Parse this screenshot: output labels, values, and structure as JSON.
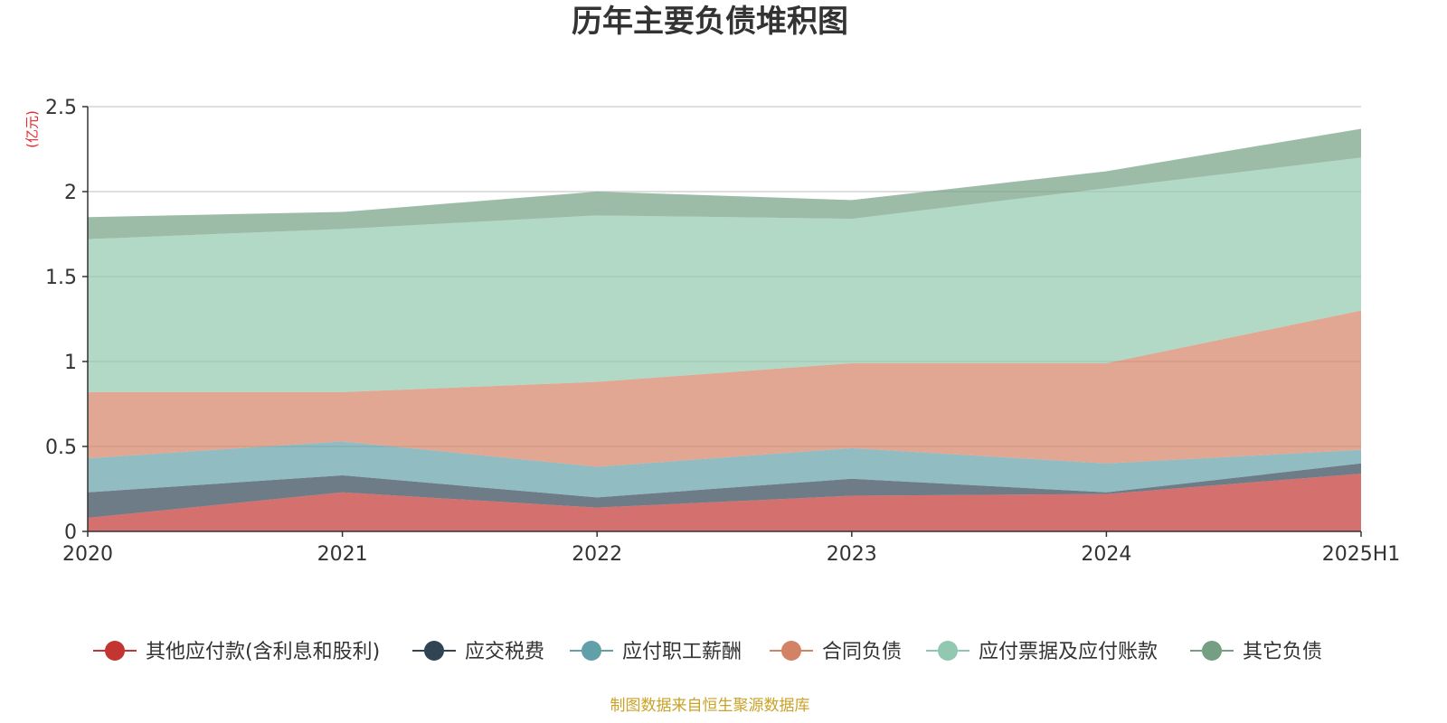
{
  "chart_data": {
    "type": "area",
    "title": "历年主要负债堆积图",
    "unit_label": "(亿元)",
    "categories": [
      "2020",
      "2021",
      "2022",
      "2023",
      "2024",
      "2025H1"
    ],
    "y_ticks": [
      "0",
      "0.5",
      "1",
      "1.5",
      "2",
      "2.5"
    ],
    "ylim": [
      0,
      2.5
    ],
    "stacked": true,
    "grid": true,
    "legend_position": "bottom",
    "series": [
      {
        "name": "其他应付款(含利息和股利)",
        "color": "#c23531",
        "values": [
          0.08,
          0.23,
          0.14,
          0.21,
          0.22,
          0.34
        ]
      },
      {
        "name": "应交税费",
        "color": "#2f4554",
        "values": [
          0.15,
          0.1,
          0.06,
          0.1,
          0.01,
          0.06
        ]
      },
      {
        "name": "应付职工薪酬",
        "color": "#61a0a8",
        "values": [
          0.2,
          0.2,
          0.18,
          0.18,
          0.17,
          0.08
        ]
      },
      {
        "name": "合同负债",
        "color": "#d48265",
        "values": [
          0.39,
          0.29,
          0.5,
          0.5,
          0.59,
          0.82
        ]
      },
      {
        "name": "应付票据及应付账款",
        "color": "#91c7ae",
        "values": [
          0.9,
          0.96,
          0.98,
          0.85,
          1.03,
          0.9
        ]
      },
      {
        "name": "其它负债",
        "color": "#749f83",
        "values": [
          0.13,
          0.1,
          0.14,
          0.11,
          0.1,
          0.17
        ]
      }
    ]
  },
  "source_text": "制图数据来自恒生聚源数据库"
}
